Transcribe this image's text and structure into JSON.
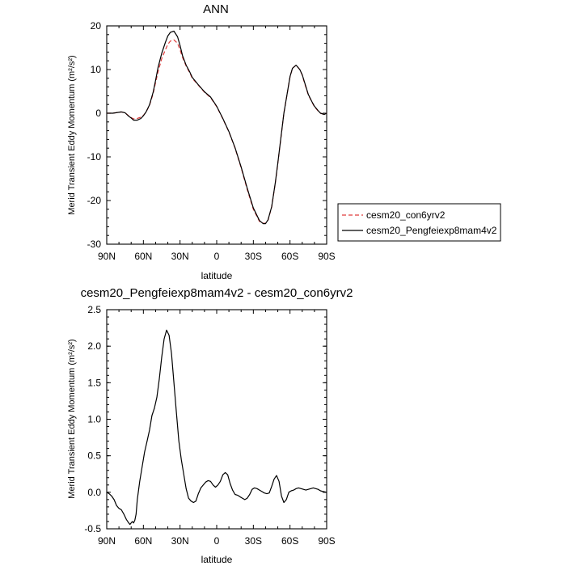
{
  "chart_data": [
    {
      "type": "line",
      "title": "ANN",
      "xlabel": "latitude",
      "ylabel": "Merid Transient Eddy Momentum (m²/s²)",
      "x_ticks": [
        "90N",
        "60N",
        "30N",
        "0",
        "30S",
        "60S",
        "90S"
      ],
      "y_ticks": [
        "20",
        "10",
        "0",
        "-10",
        "-20",
        "-30"
      ],
      "xlim": [
        90,
        -90
      ],
      "ylim": [
        -30,
        20
      ],
      "grid": false,
      "legend_position": "right",
      "series": [
        {
          "name": "cesm20_con6yrv2",
          "style": "dashed",
          "color": "#e03c3c",
          "x": [
            90,
            85,
            80,
            78,
            75,
            72,
            70,
            68,
            65,
            62,
            60,
            58,
            55,
            52,
            50,
            48,
            45,
            42,
            40,
            38,
            35,
            32,
            30,
            28,
            25,
            22,
            20,
            15,
            10,
            5,
            0,
            -5,
            -10,
            -15,
            -20,
            -25,
            -30,
            -35,
            -38,
            -40,
            -42,
            -45,
            -48,
            -50,
            -55,
            -60,
            -62,
            -65,
            -68,
            -70,
            -72,
            -75,
            -78,
            -80,
            -83,
            -85,
            -88,
            -90
          ],
          "y": [
            0,
            0,
            0.2,
            0.3,
            0.1,
            -0.6,
            -1.0,
            -1.3,
            -1.2,
            -0.9,
            -0.5,
            0.2,
            1.8,
            4.5,
            7.0,
            9.5,
            12.5,
            14.5,
            15.8,
            16.5,
            16.8,
            16.0,
            14.5,
            12.8,
            10.8,
            9.2,
            8.0,
            6.4,
            4.8,
            3.6,
            1.5,
            -1.3,
            -4.3,
            -8.0,
            -12.5,
            -17.5,
            -22.0,
            -24.8,
            -25.2,
            -25.2,
            -24.5,
            -21.5,
            -16.0,
            -11.5,
            0.0,
            8.3,
            10.3,
            11.0,
            10.0,
            8.7,
            6.8,
            4.2,
            2.5,
            1.5,
            0.5,
            0.0,
            -0.3,
            0.0
          ]
        },
        {
          "name": "cesm20_Pengfeiexp8mam4v2",
          "style": "solid",
          "color": "#000000",
          "x": [
            90,
            85,
            80,
            78,
            75,
            72,
            70,
            68,
            65,
            62,
            60,
            58,
            55,
            52,
            50,
            48,
            45,
            42,
            40,
            38,
            35,
            32,
            30,
            28,
            25,
            22,
            20,
            15,
            10,
            5,
            0,
            -5,
            -10,
            -15,
            -20,
            -25,
            -30,
            -35,
            -38,
            -40,
            -42,
            -45,
            -48,
            -50,
            -55,
            -60,
            -62,
            -65,
            -68,
            -70,
            -72,
            -75,
            -78,
            -80,
            -83,
            -85,
            -88,
            -90
          ],
          "y": [
            0,
            0,
            0.2,
            0.3,
            0.1,
            -0.7,
            -1.1,
            -1.6,
            -1.6,
            -1.2,
            -0.6,
            0.2,
            1.9,
            4.8,
            7.5,
            10.5,
            13.7,
            16.2,
            17.7,
            18.5,
            18.8,
            17.5,
            15.5,
            13.2,
            11.0,
            9.4,
            8.2,
            6.5,
            4.9,
            3.7,
            1.6,
            -1.2,
            -4.2,
            -7.9,
            -12.3,
            -17.2,
            -21.7,
            -24.6,
            -25.3,
            -25.3,
            -24.4,
            -21.4,
            -15.9,
            -11.4,
            0.0,
            8.4,
            10.3,
            11.0,
            10.0,
            8.8,
            7.0,
            4.3,
            2.6,
            1.6,
            0.6,
            0.0,
            -0.3,
            0.0
          ]
        }
      ]
    },
    {
      "type": "line",
      "title": "cesm20_Pengfeiexp8mam4v2 - cesm20_con6yrv2",
      "xlabel": "latitude",
      "ylabel": "Merid Transient Eddy Momentum (m²/s²)",
      "x_ticks": [
        "90N",
        "60N",
        "30N",
        "0",
        "30S",
        "60S",
        "90S"
      ],
      "y_ticks": [
        "2.5",
        "2.0",
        "1.5",
        "1.0",
        "0.5",
        "0.0",
        "-0.5"
      ],
      "xlim": [
        90,
        -90
      ],
      "ylim": [
        -0.5,
        2.5
      ],
      "grid": false,
      "series": [
        {
          "color": "#000000",
          "x": [
            90,
            88,
            86,
            84,
            82,
            80,
            78,
            76,
            74,
            72,
            71,
            70,
            69,
            68,
            67,
            66,
            65,
            63,
            61,
            59,
            57,
            55,
            53,
            51,
            49,
            47,
            45,
            43,
            41,
            39,
            37,
            35,
            33,
            31,
            29,
            27,
            25,
            23,
            21,
            19,
            17,
            15,
            13,
            11,
            9,
            7,
            5,
            3,
            1,
            -1,
            -3,
            -5,
            -7,
            -9,
            -11,
            -13,
            -15,
            -17,
            -19,
            -21,
            -23,
            -25,
            -27,
            -29,
            -31,
            -33,
            -35,
            -37,
            -39,
            -41,
            -43,
            -45,
            -47,
            -49,
            -51,
            -53,
            -55,
            -57,
            -59,
            -61,
            -63,
            -65,
            -67,
            -69,
            -71,
            -73,
            -75,
            -77,
            -79,
            -81,
            -83,
            -85,
            -87,
            -90
          ],
          "y": [
            0.0,
            -0.02,
            -0.05,
            -0.1,
            -0.18,
            -0.22,
            -0.24,
            -0.3,
            -0.37,
            -0.42,
            -0.44,
            -0.42,
            -0.4,
            -0.42,
            -0.38,
            -0.3,
            -0.1,
            0.15,
            0.35,
            0.55,
            0.7,
            0.85,
            1.05,
            1.15,
            1.3,
            1.55,
            1.85,
            2.1,
            2.22,
            2.15,
            1.9,
            1.5,
            1.1,
            0.7,
            0.45,
            0.25,
            0.05,
            -0.08,
            -0.12,
            -0.14,
            -0.12,
            -0.02,
            0.06,
            0.1,
            0.14,
            0.16,
            0.15,
            0.1,
            0.07,
            0.1,
            0.15,
            0.24,
            0.27,
            0.24,
            0.12,
            0.03,
            -0.03,
            -0.04,
            -0.06,
            -0.08,
            -0.1,
            -0.08,
            -0.03,
            0.04,
            0.06,
            0.05,
            0.03,
            0.01,
            -0.01,
            -0.02,
            -0.01,
            0.08,
            0.18,
            0.23,
            0.15,
            -0.05,
            -0.14,
            -0.1,
            0.0,
            0.02,
            0.03,
            0.05,
            0.06,
            0.05,
            0.04,
            0.03,
            0.04,
            0.05,
            0.06,
            0.05,
            0.04,
            0.02,
            0.01,
            0.0
          ]
        }
      ]
    }
  ]
}
